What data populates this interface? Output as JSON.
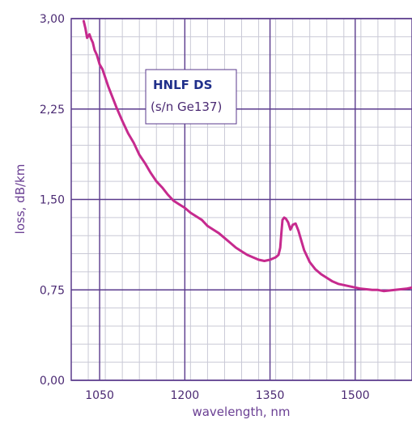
{
  "chart_data": {
    "type": "line",
    "title": "",
    "xlabel": "wavelength, nm",
    "ylabel": "loss, dB/km",
    "xlim": [
      1000,
      1600
    ],
    "ylim": [
      0,
      3.0
    ],
    "x_ticks": [
      1050,
      1200,
      1350,
      1500
    ],
    "x_tick_labels": [
      "1050",
      "1200",
      "1350",
      "1500"
    ],
    "y_ticks": [
      0,
      0.75,
      1.5,
      2.25,
      3.0
    ],
    "y_tick_labels": [
      "0,00",
      "0,75",
      "1,50",
      "2,25",
      "3,00"
    ],
    "grid": true,
    "legend": {
      "title": "HNLF DS",
      "subtitle": "(s/n Ge137)",
      "placement": "top-center"
    },
    "colors": {
      "series": "#c62a8e",
      "major_grid": "#5a3a8c",
      "minor_grid": "#c9c9d6",
      "text": "#4b2a73"
    },
    "series": [
      {
        "x": [
          1022,
          1025,
          1028,
          1032,
          1035,
          1038,
          1041,
          1045,
          1050,
          1055,
          1060,
          1065,
          1070,
          1080,
          1090,
          1100,
          1110,
          1120,
          1130,
          1140,
          1150,
          1160,
          1170,
          1180,
          1190,
          1200,
          1210,
          1220,
          1230,
          1240,
          1250,
          1260,
          1270,
          1280,
          1290,
          1300,
          1310,
          1320,
          1330,
          1340,
          1350,
          1355,
          1360,
          1365,
          1368,
          1370,
          1372,
          1375,
          1378,
          1382,
          1386,
          1390,
          1395,
          1400,
          1405,
          1410,
          1420,
          1430,
          1440,
          1450,
          1460,
          1470,
          1480,
          1490,
          1500,
          1510,
          1520,
          1530,
          1540,
          1550,
          1560,
          1570,
          1580,
          1590,
          1600
        ],
        "y": [
          2.98,
          2.92,
          2.84,
          2.87,
          2.83,
          2.8,
          2.74,
          2.7,
          2.62,
          2.58,
          2.51,
          2.44,
          2.38,
          2.26,
          2.15,
          2.05,
          1.97,
          1.87,
          1.8,
          1.72,
          1.65,
          1.6,
          1.54,
          1.49,
          1.46,
          1.43,
          1.39,
          1.36,
          1.33,
          1.28,
          1.25,
          1.22,
          1.18,
          1.14,
          1.1,
          1.07,
          1.04,
          1.02,
          1.0,
          0.99,
          1.0,
          1.01,
          1.02,
          1.04,
          1.1,
          1.22,
          1.33,
          1.35,
          1.34,
          1.31,
          1.25,
          1.29,
          1.3,
          1.24,
          1.16,
          1.08,
          0.98,
          0.92,
          0.88,
          0.85,
          0.82,
          0.8,
          0.79,
          0.78,
          0.77,
          0.76,
          0.755,
          0.75,
          0.75,
          0.74,
          0.745,
          0.75,
          0.755,
          0.76,
          0.77
        ]
      }
    ]
  }
}
